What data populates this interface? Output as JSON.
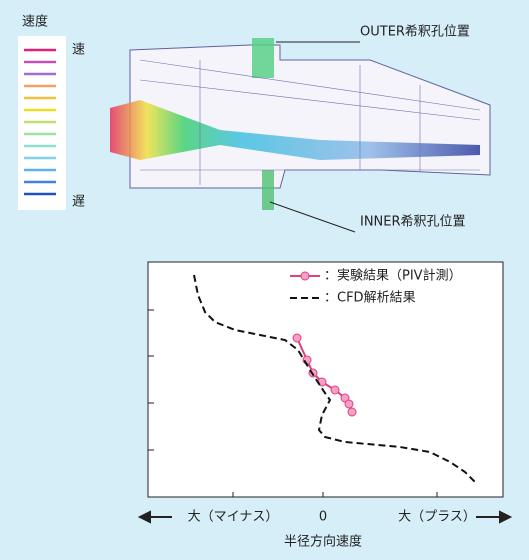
{
  "figure": {
    "speed_legend_title": "速度",
    "fast": "速",
    "slow": "遅",
    "outer_label": "OUTER希釈孔位置",
    "inner_label": "INNER希釈孔位置"
  },
  "chart_data": {
    "type": "line",
    "x_label": "半径方向速度",
    "xlim": [
      -17.5,
      18
    ],
    "ylim": [
      0,
      23.5
    ],
    "xticks": [
      {
        "value": -9,
        "label": "大（マイナス）"
      },
      0,
      {
        "value": 11.4,
        "label": "大（プラス）"
      }
    ],
    "yticks": [
      4.7,
      9.4,
      14.1,
      18.7
    ],
    "series": [
      {
        "name": "：実験結果（PIV計測）",
        "color": "#e0407a",
        "marker": "circle",
        "dash": false,
        "x": [
          -2.6,
          -1.6,
          -1.0,
          -0.1,
          1.2,
          2.2,
          2.6,
          2.9
        ],
        "values": [
          15.9,
          13.7,
          12.4,
          11.5,
          10.7,
          9.9,
          9.3,
          8.5
        ]
      },
      {
        "name": "：CFD解析結果",
        "color": "#111111",
        "marker": "none",
        "dash": true,
        "x": [
          -12.9,
          -12.5,
          -11.8,
          -10.8,
          -8.8,
          -6.3,
          -3.8,
          -2.5,
          -1.3,
          0.2,
          0.7,
          -0.1,
          -0.4,
          0.2,
          2.2,
          7.7,
          10.7,
          12.7,
          14.2,
          15.2
        ],
        "values": [
          22.2,
          20.2,
          18.5,
          17.5,
          16.7,
          16.2,
          15.7,
          14.7,
          12.7,
          10.4,
          9.7,
          8.2,
          6.7,
          6.0,
          5.5,
          5.0,
          4.5,
          3.5,
          2.5,
          1.5
        ]
      }
    ]
  }
}
